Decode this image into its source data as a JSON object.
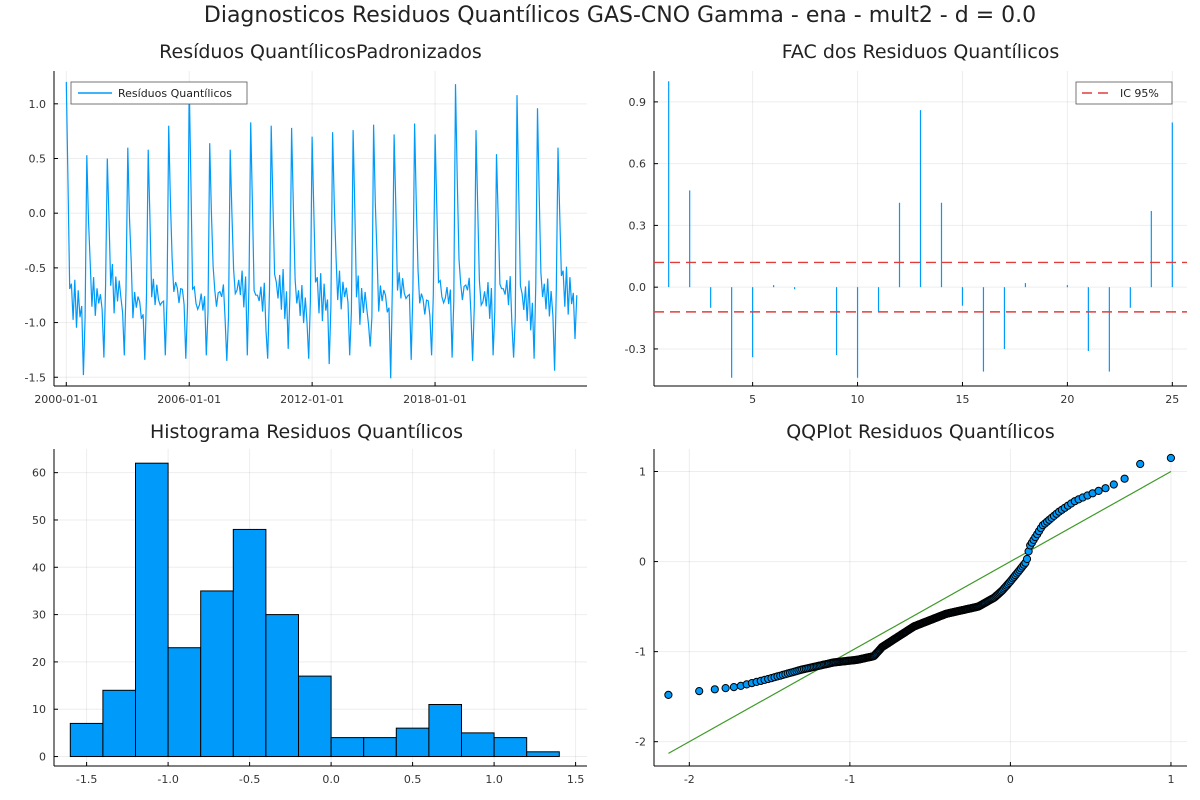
{
  "title": "Diagnosticos Residuos  Quantílicos GAS-CNO Gamma - ena - mult2 - d = 0.0",
  "colors": {
    "series": "#009AFA",
    "ci": "#E33C3C",
    "line": "#3E9A28",
    "bar_edge": "#000000"
  },
  "chart_data": [
    {
      "type": "line",
      "title": "Resíduos  QuantílicosPadronizados",
      "legend": [
        "Resíduos Quantílicos"
      ],
      "legend_position": "top-left",
      "xticks": [
        "2000-01-01",
        "2006-01-01",
        "2012-01-01",
        "2018-01-01"
      ],
      "xrange": [
        "2000-01-01",
        "2024-12-01"
      ],
      "ylim": [
        -1.58,
        1.3
      ],
      "yticks": [
        -1.5,
        -1.0,
        -0.5,
        0.0,
        0.5,
        1.0
      ],
      "ytick_labels": [
        "-1.5",
        "-1.0",
        "-0.5",
        "0.0",
        "0.5",
        "1.0"
      ],
      "grid": true,
      "start_date": "2000-01-01",
      "frequency": "monthly",
      "annual_peaks": [
        1.2,
        0.53,
        0.5,
        0.6,
        0.58,
        0.8,
        1.2,
        0.64,
        0.58,
        0.83,
        0.8,
        0.78,
        0.7,
        0.74,
        0.76,
        0.81,
        0.72,
        0.82,
        0.72,
        1.18,
        0.76,
        0.54,
        1.08,
        0.96,
        0.6
      ],
      "annual_troughs": [
        -1.48,
        -1.32,
        -1.3,
        -1.34,
        -1.3,
        -1.33,
        -1.3,
        -1.35,
        -1.3,
        -1.33,
        -1.24,
        -1.33,
        -1.38,
        -1.3,
        -1.22,
        -1.51,
        -1.34,
        -1.3,
        -1.32,
        -1.35,
        -1.3,
        -1.32,
        -1.33,
        -1.44,
        -1.15
      ]
    },
    {
      "type": "bar",
      "title": "FAC dos Residuos Quantílicos",
      "legend": [
        "IC 95%"
      ],
      "legend_position": "top-right",
      "lags": [
        1,
        2,
        3,
        4,
        5,
        6,
        7,
        8,
        9,
        10,
        11,
        12,
        13,
        14,
        15,
        16,
        17,
        18,
        19,
        20,
        21,
        22,
        23,
        24,
        25
      ],
      "values": [
        1.0,
        0.47,
        -0.1,
        -0.44,
        -0.34,
        0.01,
        -0.01,
        0.0,
        -0.33,
        -0.44,
        -0.12,
        0.41,
        0.86,
        0.41,
        -0.09,
        -0.41,
        -0.3,
        0.02,
        0.0,
        0.01,
        -0.31,
        -0.41,
        -0.1,
        0.37,
        0.8
      ],
      "confidence_interval": [
        -0.12,
        0.12
      ],
      "xlim": [
        0.3,
        25.7
      ],
      "xticks": [
        5,
        10,
        15,
        20,
        25
      ],
      "xtick_labels": [
        "5",
        "10",
        "15",
        "20",
        "25"
      ],
      "ylim": [
        -0.48,
        1.05
      ],
      "yticks": [
        -0.3,
        0.0,
        0.3,
        0.6,
        0.9
      ],
      "ytick_labels": [
        "-0.3",
        "0.0",
        "0.3",
        "0.6",
        "0.9"
      ],
      "grid": true
    },
    {
      "type": "histogram",
      "title": "Histograma Residuos Quantílicos",
      "bin_edges": [
        -1.6,
        -1.4,
        -1.2,
        -1.0,
        -0.8,
        -0.6,
        -0.4,
        -0.2,
        0.0,
        0.2,
        0.4,
        0.6,
        0.8,
        1.0,
        1.2,
        1.4
      ],
      "counts": [
        7,
        14,
        62,
        23,
        35,
        48,
        30,
        17,
        4,
        4,
        6,
        11,
        5,
        4,
        1
      ],
      "xlim": [
        -1.7,
        1.57
      ],
      "xticks": [
        -1.5,
        -1.0,
        -0.5,
        0.0,
        0.5,
        1.0,
        1.5
      ],
      "xtick_labels": [
        "-1.5",
        "-1.0",
        "-0.5",
        "0.0",
        "0.5",
        "1.0",
        "1.5"
      ],
      "ylim": [
        -2,
        65
      ],
      "yticks": [
        0,
        10,
        20,
        30,
        40,
        50,
        60
      ],
      "ytick_labels": [
        "0",
        "10",
        "20",
        "30",
        "40",
        "50",
        "60"
      ],
      "grid": true
    },
    {
      "type": "scatter",
      "title": "QQPlot Residuos Quantílicos",
      "reference_line": {
        "x": [
          -2.13,
          1.0
        ],
        "y": [
          -2.13,
          1.0
        ]
      },
      "xlim": [
        -2.22,
        1.1
      ],
      "xticks": [
        -2,
        -1,
        0,
        1
      ],
      "xtick_labels": [
        "-2",
        "-1",
        "0",
        "1"
      ],
      "ylim": [
        -2.27,
        1.25
      ],
      "yticks": [
        -2,
        -1,
        0,
        1
      ],
      "ytick_labels": [
        "-2",
        "-1",
        "0",
        "1"
      ],
      "grid": true,
      "point_count": 300,
      "quantile_curve": {
        "theoretical": [
          -2.13,
          -1.99,
          -1.9,
          -1.7,
          -1.5,
          -1.3,
          -1.1,
          -0.95,
          -0.85,
          -0.8,
          -0.6,
          -0.4,
          -0.2,
          -0.1,
          -0.05,
          0.0,
          0.1,
          0.12,
          0.2,
          0.3,
          0.4,
          0.5,
          0.6,
          0.7,
          0.8,
          0.9,
          1.0
        ],
        "sample": [
          -1.48,
          -1.45,
          -1.43,
          -1.39,
          -1.3,
          -1.2,
          -1.12,
          -1.09,
          -1.05,
          -0.95,
          -0.72,
          -0.58,
          -0.5,
          -0.4,
          -0.32,
          -0.22,
          0.0,
          0.17,
          0.4,
          0.55,
          0.67,
          0.75,
          0.82,
          0.9,
          1.08,
          1.12,
          1.15
        ]
      }
    }
  ]
}
